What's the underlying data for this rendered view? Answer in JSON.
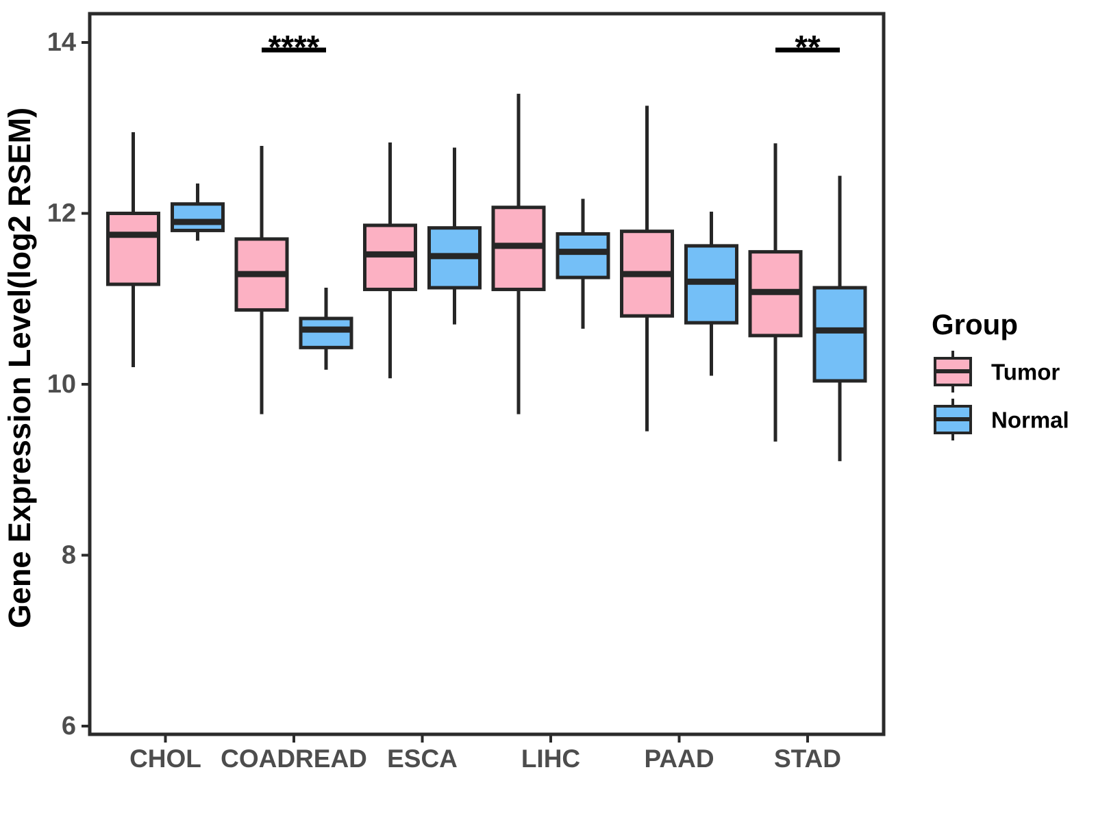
{
  "colors": {
    "tumor_fill": "#FCB1C3",
    "normal_fill": "#74BFF7",
    "box_stroke": "#262626",
    "panel_stroke": "#2B2B2B",
    "axis_text": "#4D4D4D",
    "annotation": "#000000",
    "background": "#FFFFFF"
  },
  "chart_data": {
    "type": "box",
    "title": "",
    "xlabel": "",
    "ylabel": "Gene Expression Level(log2 RSEM)",
    "categories": [
      "CHOL",
      "COADREAD",
      "ESCA",
      "LIHC",
      "PAAD",
      "STAD"
    ],
    "yticks": [
      14,
      12,
      10,
      8,
      6
    ],
    "ylim": [
      5.9,
      14.35
    ],
    "grid": false,
    "legend_position": "right",
    "legend_title": "Group",
    "series": [
      {
        "name": "Tumor",
        "color": "#FCB1C3",
        "boxes_format": [
          "min",
          "q1",
          "median",
          "q3",
          "max"
        ],
        "values": [
          [
            10.2,
            11.17,
            11.75,
            12.0,
            12.95
          ],
          [
            9.65,
            10.87,
            11.29,
            11.7,
            12.79
          ],
          [
            10.07,
            11.11,
            11.52,
            11.86,
            12.83
          ],
          [
            9.65,
            11.11,
            11.62,
            12.07,
            13.4
          ],
          [
            9.45,
            10.8,
            11.29,
            11.79,
            13.26
          ],
          [
            9.33,
            10.57,
            11.08,
            11.55,
            12.82
          ]
        ]
      },
      {
        "name": "Normal",
        "color": "#74BFF7",
        "boxes_format": [
          "min",
          "q1",
          "median",
          "q3",
          "max"
        ],
        "values": [
          [
            11.68,
            11.8,
            11.9,
            12.11,
            12.35
          ],
          [
            10.17,
            10.43,
            10.64,
            10.77,
            11.13
          ],
          [
            10.7,
            11.13,
            11.5,
            11.83,
            12.77
          ],
          [
            10.65,
            11.25,
            11.55,
            11.76,
            12.17
          ],
          [
            10.1,
            10.72,
            11.2,
            11.62,
            12.02
          ],
          [
            9.1,
            10.04,
            10.63,
            11.13,
            12.44
          ]
        ]
      }
    ],
    "annotations": [
      {
        "category": "COADREAD",
        "label": "****"
      },
      {
        "category": "STAD",
        "label": "**"
      }
    ]
  }
}
